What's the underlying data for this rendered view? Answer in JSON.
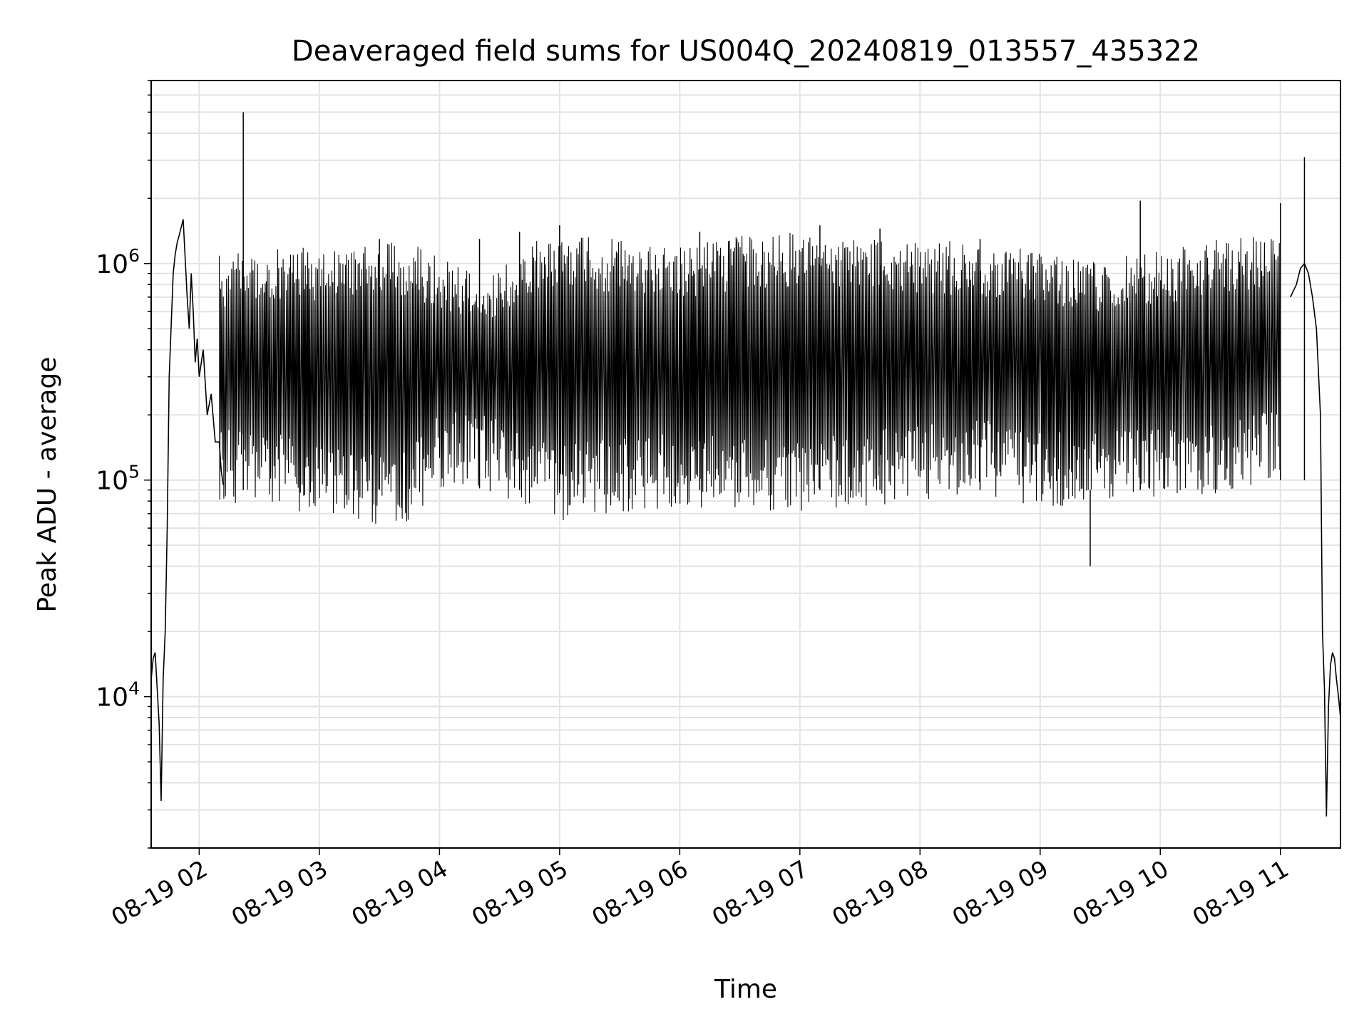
{
  "chart_data": {
    "type": "line",
    "title": "Deaveraged field sums for US004Q_20240819_013557_435322",
    "xlabel": "Time",
    "ylabel": "Peak ADU - average",
    "x_scale": "time",
    "y_scale": "log",
    "xlim": [
      "2024-08-19T01:36",
      "2024-08-19T11:30"
    ],
    "ylim": [
      2000,
      7000000
    ],
    "grid": true,
    "line_color": "#000000",
    "x_ticks": [
      {
        "t": "2024-08-19T02:00",
        "label": "08-19 02"
      },
      {
        "t": "2024-08-19T03:00",
        "label": "08-19 03"
      },
      {
        "t": "2024-08-19T04:00",
        "label": "08-19 04"
      },
      {
        "t": "2024-08-19T05:00",
        "label": "08-19 05"
      },
      {
        "t": "2024-08-19T06:00",
        "label": "08-19 06"
      },
      {
        "t": "2024-08-19T07:00",
        "label": "08-19 07"
      },
      {
        "t": "2024-08-19T08:00",
        "label": "08-19 08"
      },
      {
        "t": "2024-08-19T09:00",
        "label": "08-19 09"
      },
      {
        "t": "2024-08-19T10:00",
        "label": "08-19 10"
      },
      {
        "t": "2024-08-19T11:00",
        "label": "08-19 11"
      }
    ],
    "y_ticks": [
      {
        "value": 10000,
        "base": "10",
        "exp": "4"
      },
      {
        "value": 100000,
        "base": "10",
        "exp": "5"
      },
      {
        "value": 1000000,
        "base": "10",
        "exp": "6"
      }
    ],
    "envelope": {
      "x": [
        "2024-08-19T02:10",
        "2024-08-19T02:30",
        "2024-08-19T03:00",
        "2024-08-19T03:30",
        "2024-08-19T03:45",
        "2024-08-19T04:00",
        "2024-08-19T04:15",
        "2024-08-19T04:30",
        "2024-08-19T04:40",
        "2024-08-19T04:50",
        "2024-08-19T05:00",
        "2024-08-19T05:30",
        "2024-08-19T06:00",
        "2024-08-19T06:30",
        "2024-08-19T07:00",
        "2024-08-19T07:30",
        "2024-08-19T08:00",
        "2024-08-19T08:30",
        "2024-08-19T09:00",
        "2024-08-19T09:30",
        "2024-08-19T10:00",
        "2024-08-19T10:30",
        "2024-08-19T11:00"
      ],
      "upper": [
        1100000,
        1150000,
        1200000,
        1250000,
        1250000,
        1100000,
        1000000,
        1000000,
        1200000,
        1300000,
        1350000,
        1300000,
        1200000,
        1350000,
        1400000,
        1350000,
        1300000,
        1250000,
        1150000,
        1050000,
        1150000,
        1300000,
        1350000
      ],
      "lower": [
        80000,
        75000,
        70000,
        60000,
        65000,
        90000,
        95000,
        85000,
        75000,
        70000,
        65000,
        70000,
        75000,
        70000,
        70000,
        75000,
        80000,
        85000,
        75000,
        75000,
        80000,
        85000,
        100000
      ]
    },
    "series": [
      {
        "x": [
          "2024-08-19T01:36",
          "2024-08-19T01:37",
          "2024-08-19T01:38",
          "2024-08-19T01:40",
          "2024-08-19T01:41",
          "2024-08-19T01:42",
          "2024-08-19T01:43",
          "2024-08-19T01:44",
          "2024-08-19T01:45",
          "2024-08-19T01:47",
          "2024-08-19T01:48",
          "2024-08-19T01:49",
          "2024-08-19T01:50",
          "2024-08-19T01:52",
          "2024-08-19T01:54",
          "2024-08-19T01:55",
          "2024-08-19T01:56",
          "2024-08-19T01:57",
          "2024-08-19T01:58",
          "2024-08-19T01:59",
          "2024-08-19T02:00",
          "2024-08-19T02:02",
          "2024-08-19T02:04",
          "2024-08-19T02:06",
          "2024-08-19T02:08",
          "2024-08-19T02:10",
          "2024-08-19T02:11",
          "2024-08-19T02:12"
        ],
        "values": [
          12000,
          15000,
          16000,
          7500,
          3300,
          12000,
          20000,
          60000,
          300000,
          900000,
          1100000,
          1250000,
          1350000,
          1600000,
          700000,
          500000,
          900000,
          600000,
          350000,
          450000,
          300000,
          400000,
          200000,
          250000,
          150000,
          150000,
          110000,
          95000
        ]
      },
      {
        "x": [
          "2024-08-19T02:22",
          "2024-08-19T03:30",
          "2024-08-19T04:20",
          "2024-08-19T04:40",
          "2024-08-19T05:00",
          "2024-08-19T06:10",
          "2024-08-19T07:10",
          "2024-08-19T07:40",
          "2024-08-19T08:30",
          "2024-08-19T09:25",
          "2024-08-19T09:50",
          "2024-08-19T11:00",
          "2024-08-19T11:12"
        ],
        "values": [
          5000000,
          1300000,
          1300000,
          1400000,
          1500000,
          1400000,
          1500000,
          1450000,
          1300000,
          40000,
          1950000,
          1900000,
          3100000
        ]
      },
      {
        "x": [
          "2024-08-19T11:05",
          "2024-08-19T11:08",
          "2024-08-19T11:10",
          "2024-08-19T11:12",
          "2024-08-19T11:14",
          "2024-08-19T11:16",
          "2024-08-19T11:18",
          "2024-08-19T11:20",
          "2024-08-19T11:21",
          "2024-08-19T11:22",
          "2024-08-19T11:23",
          "2024-08-19T11:24",
          "2024-08-19T11:25",
          "2024-08-19T11:26",
          "2024-08-19T11:27",
          "2024-08-19T11:28",
          "2024-08-19T11:29",
          "2024-08-19T11:30"
        ],
        "values": [
          700000,
          800000,
          950000,
          1000000,
          900000,
          700000,
          500000,
          200000,
          20000,
          11000,
          2800,
          9000,
          14000,
          16000,
          15000,
          12000,
          10000,
          8000
        ]
      }
    ]
  }
}
